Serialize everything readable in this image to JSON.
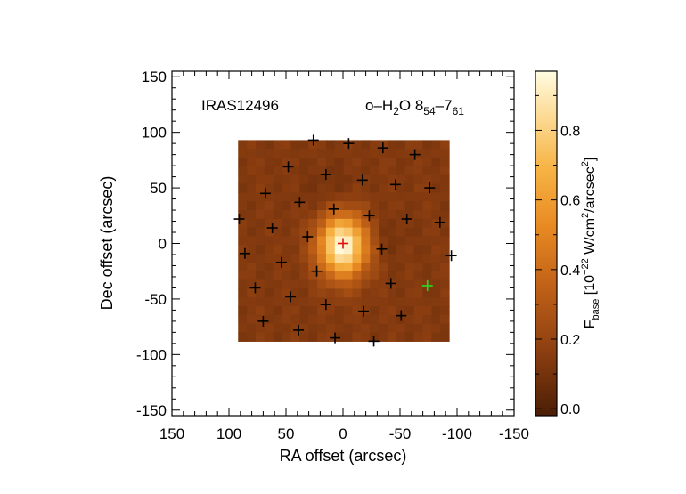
{
  "chart_data": {
    "type": "heatmap",
    "title": "IRAS12496",
    "line_label": {
      "prefix": "o–H",
      "sub1": "2",
      "mid": "O 8",
      "sub2": "54",
      "dash": "–7",
      "sub3": "61"
    },
    "xlabel": "RA offset (arcsec)",
    "ylabel": "Dec offset (arcsec)",
    "xlim": [
      150,
      -150
    ],
    "ylim": [
      -155,
      155
    ],
    "x_ticks": [
      150,
      100,
      50,
      0,
      -50,
      -100,
      -150
    ],
    "y_ticks": [
      150,
      100,
      50,
      0,
      -50,
      -100,
      -150
    ],
    "map_extent": {
      "x": [
        92,
        -93
      ],
      "y": [
        -88,
        93
      ]
    },
    "peak": {
      "x": 0,
      "y": 0,
      "value": 0.97
    },
    "colorbar": {
      "label_main": "F",
      "label_sub": "base",
      "label_unit_a": " [10",
      "label_exp1": "−22",
      "label_unit_b": " W/cm",
      "label_exp2": "2",
      "label_unit_c": "/arcsec",
      "label_exp3": "2",
      "label_close": "]",
      "range": [
        -0.02,
        0.97
      ],
      "ticks": [
        0.0,
        0.2,
        0.4,
        0.6,
        0.8
      ],
      "tick_labels": [
        "0.0",
        "0.2",
        "0.4",
        "0.6",
        "0.8"
      ]
    },
    "spaxels_black": [
      [
        26,
        93
      ],
      [
        -5,
        90
      ],
      [
        -35,
        86
      ],
      [
        -63,
        80
      ],
      [
        48,
        69
      ],
      [
        15,
        62
      ],
      [
        -17,
        57
      ],
      [
        -46,
        53
      ],
      [
        -76,
        50
      ],
      [
        91,
        22
      ],
      [
        68,
        45
      ],
      [
        38,
        37
      ],
      [
        8,
        31
      ],
      [
        -23,
        25
      ],
      [
        -56,
        22
      ],
      [
        -85,
        19
      ],
      [
        62,
        14
      ],
      [
        31,
        6
      ],
      [
        -34,
        -5
      ],
      [
        -95,
        -11
      ],
      [
        86,
        -9
      ],
      [
        54,
        -17
      ],
      [
        23,
        -25
      ],
      [
        -42,
        -36
      ],
      [
        77,
        -40
      ],
      [
        46,
        -48
      ],
      [
        15,
        -55
      ],
      [
        -18,
        -61
      ],
      [
        -51,
        -65
      ],
      [
        70,
        -70
      ],
      [
        39,
        -78
      ],
      [
        7,
        -85
      ],
      [
        -27,
        -88
      ]
    ],
    "spaxel_center": [
      0,
      0
    ],
    "spaxel_highlight": [
      -74,
      -38
    ],
    "colors": {
      "center_marker": "#e01010",
      "highlight_marker": "#22dd22",
      "marker": "#000000",
      "map_low": "#5a2a0c",
      "map_high": "#fff9c4"
    }
  }
}
